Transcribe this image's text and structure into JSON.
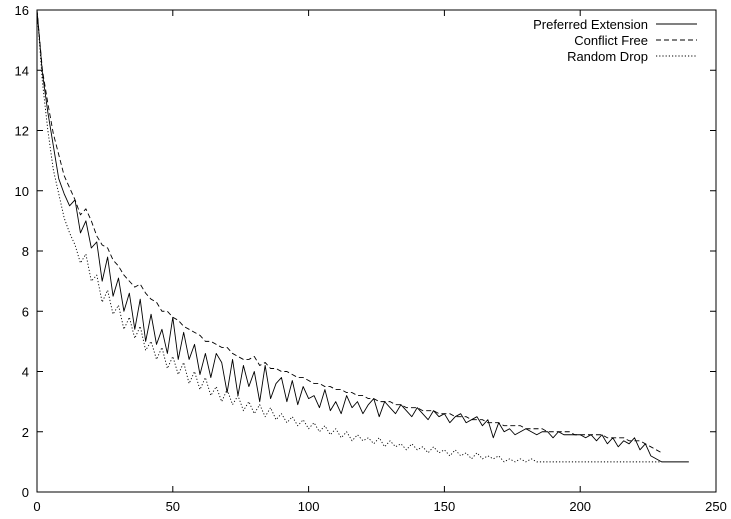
{
  "chart_data": {
    "type": "line",
    "title": "",
    "xlabel": "",
    "ylabel": "",
    "xlim": [
      0,
      250
    ],
    "ylim": [
      0,
      16
    ],
    "xticks": [
      "0",
      "50",
      "100",
      "150",
      "200",
      "250"
    ],
    "yticks": [
      "0",
      "2",
      "4",
      "6",
      "8",
      "10",
      "12",
      "14",
      "16"
    ],
    "grid": false,
    "legend_position": "top-right",
    "series": [
      {
        "name": "Preferred Extension",
        "style": "solid",
        "x": [
          0,
          2,
          4,
          6,
          8,
          10,
          12,
          14,
          16,
          18,
          20,
          22,
          24,
          26,
          28,
          30,
          32,
          34,
          36,
          38,
          40,
          42,
          44,
          46,
          48,
          50,
          52,
          54,
          56,
          58,
          60,
          62,
          64,
          66,
          68,
          70,
          72,
          74,
          76,
          78,
          80,
          82,
          84,
          86,
          88,
          90,
          92,
          94,
          96,
          98,
          100,
          102,
          104,
          106,
          108,
          110,
          112,
          114,
          116,
          118,
          120,
          122,
          124,
          126,
          128,
          130,
          132,
          134,
          136,
          138,
          140,
          142,
          144,
          146,
          148,
          150,
          152,
          154,
          156,
          158,
          160,
          162,
          164,
          166,
          168,
          170,
          172,
          174,
          176,
          178,
          180,
          182,
          184,
          186,
          188,
          190,
          192,
          194,
          196,
          198,
          200,
          202,
          204,
          206,
          208,
          210,
          212,
          214,
          216,
          218,
          220,
          222,
          224,
          226,
          228,
          230,
          232,
          234,
          236,
          238,
          240
        ],
        "values": [
          16,
          13.9,
          12.6,
          11.5,
          10.4,
          9.9,
          9.5,
          9.7,
          8.6,
          9.0,
          8.1,
          8.3,
          7.0,
          7.8,
          6.5,
          7.1,
          6.0,
          6.6,
          5.4,
          6.4,
          5.0,
          5.9,
          4.9,
          5.4,
          4.6,
          5.8,
          4.4,
          5.3,
          4.4,
          4.9,
          3.9,
          4.6,
          3.8,
          4.6,
          4.3,
          3.3,
          4.4,
          3.2,
          4.2,
          3.5,
          4.0,
          3.0,
          4.2,
          3.1,
          3.6,
          3.8,
          3.0,
          3.7,
          2.9,
          3.5,
          3.1,
          3.2,
          2.8,
          3.4,
          2.7,
          3.0,
          2.6,
          3.2,
          2.8,
          3.0,
          2.6,
          2.9,
          3.1,
          2.5,
          3.0,
          2.8,
          2.6,
          2.9,
          2.7,
          2.5,
          2.8,
          2.6,
          2.4,
          2.7,
          2.5,
          2.6,
          2.3,
          2.5,
          2.6,
          2.3,
          2.4,
          2.5,
          2.2,
          2.4,
          1.8,
          2.3,
          2.0,
          2.1,
          1.9,
          2.0,
          2.1,
          2.0,
          1.9,
          2.0,
          2.0,
          1.8,
          2.0,
          1.9,
          1.9,
          1.9,
          1.9,
          1.8,
          1.9,
          1.7,
          1.9,
          1.6,
          1.8,
          1.5,
          1.7,
          1.6,
          1.8,
          1.4,
          1.6,
          1.2,
          1.1,
          1.0,
          1.0,
          1.0,
          1.0,
          1.0,
          1.0
        ]
      },
      {
        "name": "Conflict Free",
        "style": "dashed",
        "x": [
          0,
          2,
          4,
          6,
          8,
          10,
          12,
          14,
          16,
          18,
          20,
          22,
          24,
          26,
          28,
          30,
          32,
          34,
          36,
          38,
          40,
          42,
          44,
          46,
          48,
          50,
          52,
          54,
          56,
          58,
          60,
          62,
          64,
          66,
          68,
          70,
          72,
          74,
          76,
          78,
          80,
          82,
          84,
          86,
          88,
          90,
          92,
          94,
          96,
          98,
          100,
          102,
          104,
          106,
          108,
          110,
          112,
          114,
          116,
          118,
          120,
          122,
          124,
          126,
          128,
          130,
          132,
          134,
          136,
          138,
          140,
          142,
          144,
          146,
          148,
          150,
          152,
          154,
          156,
          158,
          160,
          162,
          164,
          166,
          168,
          170,
          172,
          174,
          176,
          178,
          180,
          182,
          184,
          186,
          188,
          190,
          192,
          194,
          196,
          198,
          200,
          202,
          204,
          206,
          208,
          210,
          212,
          214,
          216,
          218,
          220,
          222,
          224,
          226,
          228,
          230
        ],
        "values": [
          16,
          14.0,
          12.9,
          11.9,
          11.2,
          10.5,
          10.1,
          9.7,
          9.2,
          9.4,
          9.0,
          8.5,
          8.2,
          8.1,
          7.7,
          7.5,
          7.2,
          7.0,
          6.8,
          6.9,
          6.6,
          6.4,
          6.3,
          6.0,
          6.0,
          5.8,
          5.7,
          5.5,
          5.4,
          5.3,
          5.2,
          5.0,
          5.0,
          4.9,
          4.8,
          4.8,
          4.6,
          4.5,
          4.4,
          4.4,
          4.5,
          4.2,
          4.3,
          4.1,
          4.1,
          4.0,
          4.0,
          3.9,
          3.8,
          3.8,
          3.7,
          3.6,
          3.6,
          3.5,
          3.5,
          3.4,
          3.4,
          3.3,
          3.3,
          3.2,
          3.2,
          3.1,
          3.1,
          3.0,
          3.0,
          3.0,
          2.9,
          2.9,
          2.8,
          2.8,
          2.8,
          2.7,
          2.7,
          2.7,
          2.6,
          2.6,
          2.6,
          2.5,
          2.5,
          2.5,
          2.4,
          2.4,
          2.4,
          2.3,
          2.3,
          2.3,
          2.2,
          2.2,
          2.2,
          2.2,
          2.1,
          2.1,
          2.1,
          2.1,
          2.0,
          2.0,
          2.0,
          2.0,
          2.0,
          1.9,
          1.9,
          1.9,
          1.9,
          1.9,
          1.9,
          1.8,
          1.8,
          1.8,
          1.8,
          1.7,
          1.7,
          1.7,
          1.6,
          1.5,
          1.4,
          1.3
        ]
      },
      {
        "name": "Random Drop",
        "style": "dotted",
        "x": [
          0,
          2,
          4,
          6,
          8,
          10,
          12,
          14,
          16,
          18,
          20,
          22,
          24,
          26,
          28,
          30,
          32,
          34,
          36,
          38,
          40,
          42,
          44,
          46,
          48,
          50,
          52,
          54,
          56,
          58,
          60,
          62,
          64,
          66,
          68,
          70,
          72,
          74,
          76,
          78,
          80,
          82,
          84,
          86,
          88,
          90,
          92,
          94,
          96,
          98,
          100,
          102,
          104,
          106,
          108,
          110,
          112,
          114,
          116,
          118,
          120,
          122,
          124,
          126,
          128,
          130,
          132,
          134,
          136,
          138,
          140,
          142,
          144,
          146,
          148,
          150,
          152,
          154,
          156,
          158,
          160,
          162,
          164,
          166,
          168,
          170,
          172,
          174,
          176,
          178,
          180,
          182,
          184,
          186,
          188,
          190,
          192,
          194,
          196,
          198,
          200,
          202,
          204,
          206,
          208,
          210,
          212,
          214,
          216,
          218,
          220,
          222,
          224,
          226,
          228,
          230
        ],
        "values": [
          16,
          13.6,
          12.0,
          10.7,
          9.9,
          9.1,
          8.6,
          8.2,
          7.6,
          7.9,
          7.0,
          7.2,
          6.3,
          6.7,
          5.9,
          6.2,
          5.4,
          5.8,
          5.1,
          5.5,
          4.7,
          5.0,
          4.4,
          4.8,
          4.1,
          4.5,
          3.9,
          4.3,
          3.6,
          4.0,
          3.4,
          3.8,
          3.2,
          3.5,
          3.0,
          3.4,
          2.9,
          3.2,
          2.7,
          3.0,
          2.6,
          2.9,
          2.5,
          2.8,
          2.4,
          2.6,
          2.3,
          2.5,
          2.2,
          2.4,
          2.1,
          2.3,
          2.0,
          2.2,
          1.9,
          2.1,
          1.8,
          2.0,
          1.7,
          1.9,
          1.7,
          1.8,
          1.6,
          1.8,
          1.5,
          1.7,
          1.5,
          1.6,
          1.4,
          1.6,
          1.4,
          1.5,
          1.3,
          1.5,
          1.3,
          1.4,
          1.2,
          1.4,
          1.2,
          1.3,
          1.1,
          1.3,
          1.1,
          1.2,
          1.1,
          1.2,
          1.0,
          1.1,
          1.0,
          1.1,
          1.0,
          1.1,
          1.0,
          1.0,
          1.0,
          1.0,
          1.0,
          1.0,
          1.0,
          1.0,
          1.0,
          1.0,
          1.0,
          1.0,
          1.0,
          1.0,
          1.0,
          1.0,
          1.0,
          1.0,
          1.0,
          1.0,
          1.0,
          1.0,
          1.0,
          1.0
        ]
      }
    ]
  }
}
